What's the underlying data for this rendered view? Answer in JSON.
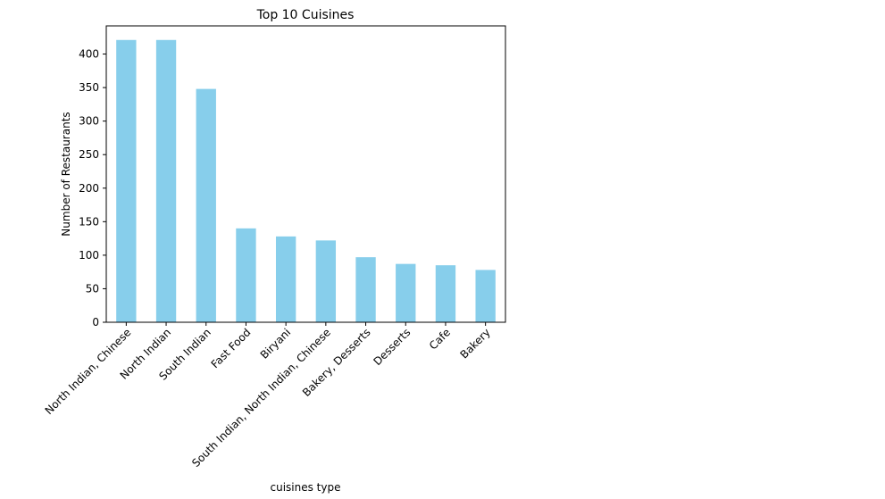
{
  "chart_data": {
    "type": "bar",
    "title": "Top 10 Cuisines",
    "xlabel": "cuisines type",
    "ylabel": "Number of Restaurants",
    "categories": [
      "North Indian, Chinese",
      "North Indian",
      "South Indian",
      "Fast Food",
      "Biryani",
      "South Indian, North Indian, Chinese",
      "Bakery, Desserts",
      "Desserts",
      "Cafe",
      "Bakery"
    ],
    "values": [
      421,
      421,
      348,
      140,
      128,
      122,
      97,
      87,
      85,
      78
    ],
    "ylim": [
      0,
      442
    ],
    "yticks": [
      0,
      50,
      100,
      150,
      200,
      250,
      300,
      350,
      400
    ],
    "bar_color": "#87ceeb",
    "grid": false,
    "legend": false
  }
}
